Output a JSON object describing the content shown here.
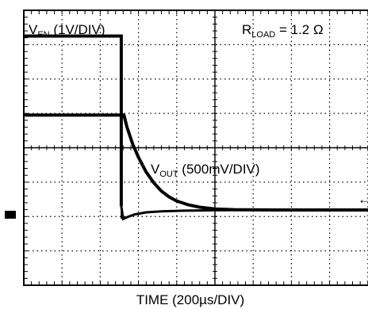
{
  "chart_data": {
    "type": "line",
    "title": "",
    "xlabel": "TIME (200µs/DIV)",
    "x_unit_per_div": "200µs",
    "grid": true,
    "divisions": {
      "x": 10,
      "y": 8
    },
    "annotation": {
      "main": "R",
      "sub": "LOAD",
      "rest": " = 1.2 Ω"
    },
    "series": [
      {
        "label_main": "V",
        "label_sub": "EN",
        "label_rest": " (1V/DIV)",
        "points_div": [
          [
            0,
            7.25
          ],
          [
            2.55,
            7.25
          ],
          [
            2.55,
            2.3
          ]
        ]
      },
      {
        "label_main": "V",
        "label_sub": "OUT",
        "label_rest": " (500mV/DIV)",
        "points_div": [
          [
            0,
            4.95
          ],
          [
            2.62,
            4.95
          ],
          [
            2.7,
            4.6
          ],
          [
            2.85,
            4.1
          ],
          [
            3.0,
            3.72
          ],
          [
            3.2,
            3.3
          ],
          [
            3.4,
            2.98
          ],
          [
            3.6,
            2.74
          ],
          [
            3.8,
            2.57
          ],
          [
            4.0,
            2.45
          ],
          [
            4.3,
            2.34
          ],
          [
            4.6,
            2.27
          ],
          [
            5.0,
            2.22
          ],
          [
            5.5,
            2.2
          ],
          [
            6.5,
            2.19
          ],
          [
            10,
            2.19
          ]
        ]
      },
      {
        "label_main": "",
        "label_sub": "",
        "label_rest": "",
        "points_div": [
          [
            2.55,
            2.3
          ],
          [
            2.6,
            1.93
          ],
          [
            2.7,
            1.98
          ],
          [
            2.9,
            2.06
          ],
          [
            3.2,
            2.12
          ],
          [
            3.6,
            2.15
          ],
          [
            4.2,
            2.17
          ],
          [
            5.0,
            2.18
          ],
          [
            6.0,
            2.19
          ],
          [
            10,
            2.19
          ]
        ]
      }
    ]
  },
  "markers": {
    "ground_marker": "ground-reference",
    "arrow_glyph": "←"
  }
}
